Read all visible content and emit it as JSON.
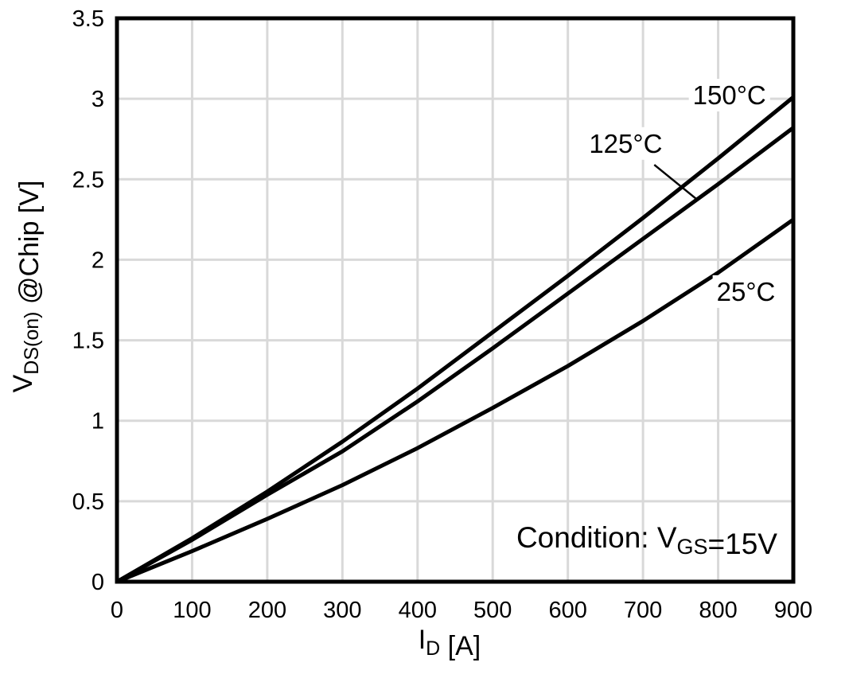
{
  "figure": {
    "background": "#ffffff",
    "border_color": "#000000",
    "grid_color": "#d9d9d9",
    "curve_color": "#000000",
    "text_color": "#000000"
  },
  "chart_data": {
    "type": "line",
    "title": "",
    "xlabel": "I_D [A]",
    "xlabel_parts": [
      {
        "text": "I"
      },
      {
        "sub": "D"
      },
      {
        "text": " [A]"
      }
    ],
    "ylabel": "V_DS(on) @Chip [V]",
    "ylabel_parts": [
      {
        "text": "V"
      },
      {
        "sub": "DS(on)"
      },
      {
        "text": " @Chip [V]"
      }
    ],
    "condition": "Condition: V_GS=15V",
    "condition_parts": [
      {
        "text": "Condition: V"
      },
      {
        "sub": "GS"
      },
      {
        "text": "=15V"
      }
    ],
    "xlim": [
      0,
      900
    ],
    "ylim": [
      0,
      3.5
    ],
    "grid": true,
    "legend_position": "inline-labels",
    "x_ticks": [
      {
        "v": 0,
        "label": "0"
      },
      {
        "v": 100,
        "label": "100"
      },
      {
        "v": 200,
        "label": "200"
      },
      {
        "v": 300,
        "label": "300"
      },
      {
        "v": 400,
        "label": "400"
      },
      {
        "v": 500,
        "label": "500"
      },
      {
        "v": 600,
        "label": "600"
      },
      {
        "v": 700,
        "label": "700"
      },
      {
        "v": 800,
        "label": "800"
      },
      {
        "v": 900,
        "label": "900"
      }
    ],
    "y_ticks": [
      {
        "v": 0,
        "label": "0"
      },
      {
        "v": 0.5,
        "label": "0.5"
      },
      {
        "v": 1,
        "label": "1"
      },
      {
        "v": 1.5,
        "label": "1.5"
      },
      {
        "v": 2,
        "label": "2"
      },
      {
        "v": 2.5,
        "label": "2.5"
      },
      {
        "v": 3,
        "label": "3"
      },
      {
        "v": 3.5,
        "label": "3.5"
      }
    ],
    "x": [
      0,
      100,
      200,
      300,
      400,
      500,
      600,
      700,
      800,
      900
    ],
    "series": [
      {
        "name": "150°C",
        "values": [
          0,
          0.27,
          0.56,
          0.87,
          1.2,
          1.55,
          1.9,
          2.26,
          2.63,
          3.01
        ]
      },
      {
        "name": "125°C",
        "values": [
          0,
          0.26,
          0.54,
          0.81,
          1.12,
          1.45,
          1.79,
          2.13,
          2.47,
          2.82
        ]
      },
      {
        "name": "25°C",
        "values": [
          0,
          0.19,
          0.39,
          0.6,
          0.83,
          1.08,
          1.34,
          1.62,
          1.92,
          2.25
        ]
      }
    ],
    "annotations": [
      {
        "label": "150°C",
        "x": 815,
        "y": 3.02,
        "anchor": "middle"
      },
      {
        "label": "125°C",
        "x": 677,
        "y": 2.72,
        "anchor": "middle",
        "leader": {
          "x1": 715,
          "y1": 2.59,
          "x2": 773,
          "y2": 2.37
        }
      },
      {
        "label": "25°C",
        "x": 837,
        "y": 1.8,
        "anchor": "middle"
      }
    ]
  }
}
